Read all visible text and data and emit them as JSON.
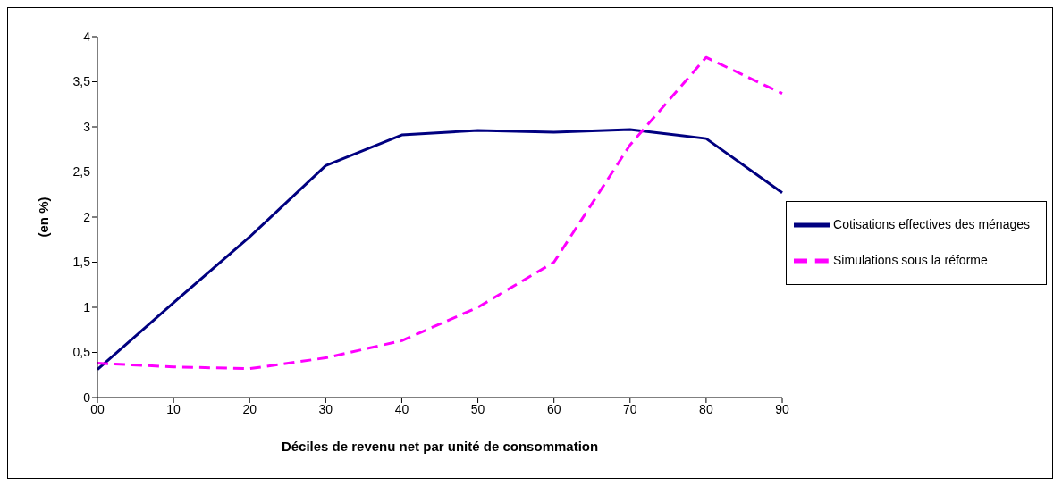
{
  "chart_data": {
    "type": "line",
    "xlabel": "Déciles de revenu net par unité de consommation",
    "ylabel": "(en %)",
    "categories": [
      "00",
      "10",
      "20",
      "30",
      "40",
      "50",
      "60",
      "70",
      "80",
      "90"
    ],
    "series": [
      {
        "name": "Cotisations effectives des ménages",
        "color": "#000080",
        "line_style": "solid",
        "values": [
          0.31,
          1.05,
          1.78,
          2.57,
          2.91,
          2.96,
          2.94,
          2.97,
          2.87,
          2.27
        ]
      },
      {
        "name": "Simulations sous la réforme",
        "color": "#ff00ff",
        "line_style": "dashed",
        "values": [
          0.38,
          0.34,
          0.32,
          0.44,
          0.63,
          1.0,
          1.5,
          2.8,
          3.77,
          3.37
        ]
      }
    ],
    "ylim": [
      0,
      4
    ],
    "yticks": [
      0,
      {
        "value": 0.5,
        "label": "0,5"
      },
      1,
      {
        "value": 1.5,
        "label": "1,5"
      },
      2,
      {
        "value": 2.5,
        "label": "2,5"
      },
      3,
      {
        "value": 3.5,
        "label": "3,5"
      },
      4
    ],
    "grid": false,
    "legend": "right",
    "marker": "none"
  }
}
